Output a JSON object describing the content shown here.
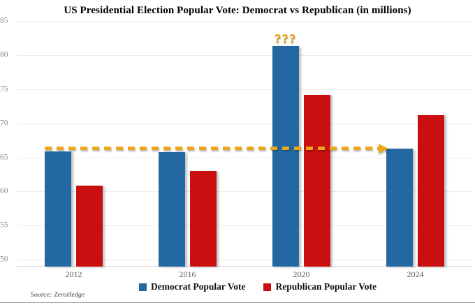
{
  "title": "US Presidential Election Popular Vote: Democrat vs Republican (in millions)",
  "source_note": "Source: ZeroHedge",
  "annotation_text": "???",
  "colors": {
    "democrat": "#2368A2",
    "republican": "#C90F0F",
    "arrow": "#EDA61A",
    "annotation": "#F0A91E",
    "gridline": "#ECECEC",
    "axis_line": "#D5D5D5",
    "ytick_text": "#8C8C8C",
    "xtick_text": "#5E5E5E"
  },
  "legend": {
    "items": [
      {
        "label": "Democrat Popular Vote",
        "color_key": "democrat"
      },
      {
        "label": "Republican Popular Vote",
        "color_key": "republican"
      }
    ]
  },
  "chart_data": {
    "type": "bar",
    "title": "US Presidential Election Popular Vote: Democrat vs Republican (in millions)",
    "categories": [
      "2012",
      "2016",
      "2020",
      "2024"
    ],
    "series": [
      {
        "name": "Democrat Popular Vote",
        "color_key": "democrat",
        "values": [
          65.9,
          65.8,
          81.3,
          66.3
        ]
      },
      {
        "name": "Republican Popular Vote",
        "color_key": "republican",
        "values": [
          60.9,
          63.0,
          74.2,
          71.2
        ]
      }
    ],
    "xlabel": "",
    "ylabel": "",
    "ylim": [
      49,
      85
    ],
    "yticks": [
      50,
      55,
      60,
      65,
      70,
      75,
      80,
      85
    ],
    "grid": true,
    "legend_position": "bottom",
    "annotations": [
      {
        "type": "text",
        "text": "???",
        "category": "2020",
        "series": "Democrat Popular Vote",
        "position": "above-bar"
      },
      {
        "type": "dashed-arrow",
        "y": 66.3,
        "from_category": "2012",
        "to_category": "2024"
      }
    ]
  }
}
